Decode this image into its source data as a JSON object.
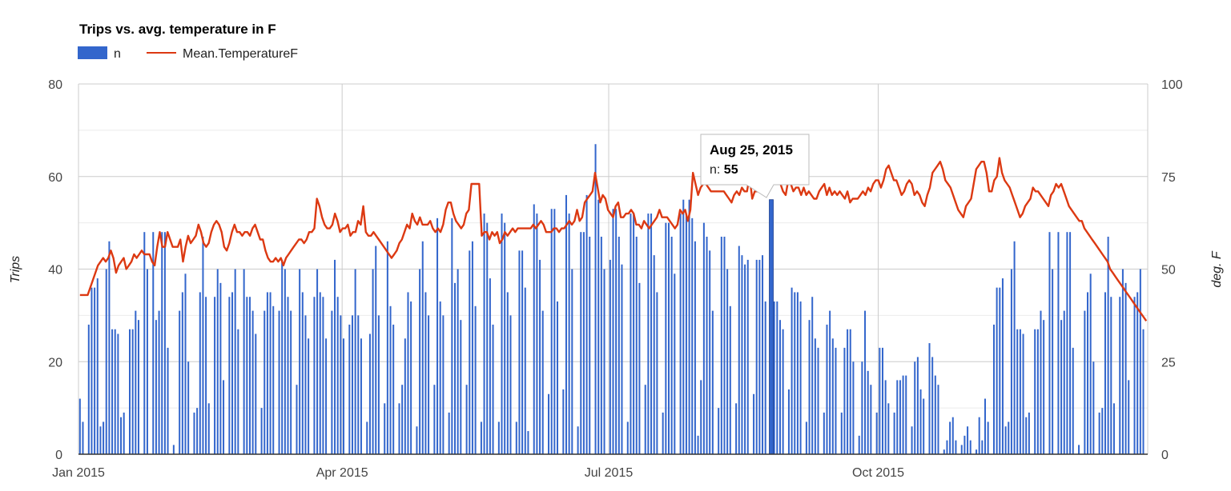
{
  "chart_data": {
    "type": "bar+line",
    "title": "Trips vs. avg. temperature in F",
    "ylabel": "Trips",
    "y2label": "deg. F",
    "ylim": [
      0,
      80
    ],
    "y2lim": [
      0,
      100
    ],
    "yticks": [
      "0",
      "20",
      "40",
      "60",
      "80"
    ],
    "y2ticks": [
      "0",
      "25",
      "50",
      "75",
      "100"
    ],
    "xticks": [
      "Jan 2015",
      "Apr 2015",
      "Jul 2015",
      "Oct 2015"
    ],
    "grid": true,
    "legend_position": "top-left",
    "x_start": "2015-01-01",
    "x_end": "2015-12-31",
    "series": [
      {
        "name": "n",
        "type": "bar",
        "axis": "left",
        "color": "#3366cc",
        "weekly_pattern": [
          12,
          7,
          0,
          28,
          36,
          36,
          38,
          6,
          7,
          40,
          46,
          27,
          27,
          26,
          8,
          9,
          0,
          27,
          27,
          31,
          29,
          0,
          48,
          40,
          0,
          48,
          29,
          31,
          48,
          48,
          23,
          0,
          2,
          0,
          31,
          35,
          39,
          20,
          0,
          9,
          10,
          35,
          47,
          34,
          11,
          0,
          34,
          40,
          37,
          16,
          0,
          34,
          35,
          40,
          27,
          0,
          40,
          34,
          34,
          31,
          26,
          0,
          10,
          31,
          35,
          35,
          32,
          0,
          31,
          42,
          40,
          34,
          31,
          0,
          15,
          40,
          35,
          30,
          25,
          0,
          34,
          40,
          35,
          34,
          25,
          0,
          31,
          42,
          34,
          30,
          25,
          0,
          28,
          30,
          40,
          30,
          25,
          0,
          7,
          26,
          40,
          45,
          30,
          0,
          11,
          46,
          32,
          28,
          0,
          11,
          15,
          25,
          35,
          33,
          0,
          6,
          40,
          46,
          35,
          30,
          0,
          15,
          51,
          33,
          30,
          0,
          9,
          51,
          37,
          40,
          29,
          0,
          15,
          44,
          46,
          32,
          0,
          7,
          52,
          50,
          38,
          28,
          0,
          7,
          52,
          50,
          35,
          30,
          0,
          7,
          44,
          44,
          36,
          5,
          0,
          54,
          52,
          42,
          31,
          0,
          13,
          53,
          53,
          33,
          0,
          14,
          56,
          52,
          40,
          0,
          6,
          48,
          48,
          56,
          47,
          0,
          67,
          55,
          47,
          40,
          0,
          42,
          53,
          53,
          47,
          41,
          0,
          7,
          52,
          52,
          47,
          37,
          0,
          15,
          52,
          52,
          43,
          35,
          0,
          9,
          50,
          50,
          47,
          39,
          0,
          52,
          55,
          52,
          55,
          51,
          46,
          4,
          16,
          50,
          47,
          44,
          31,
          0,
          10,
          47,
          47,
          40,
          32,
          0,
          11,
          45,
          43,
          41,
          42,
          0,
          13,
          42,
          42,
          43,
          33,
          0,
          10,
          33,
          33,
          29,
          27,
          0,
          14,
          36,
          35,
          35,
          33,
          0,
          7,
          29,
          34,
          25,
          23,
          0,
          9,
          28,
          31,
          25,
          23,
          0,
          9,
          23,
          27,
          27,
          20,
          0,
          4,
          20,
          31,
          18,
          15,
          0,
          9,
          23,
          23,
          16,
          11,
          0,
          9,
          16,
          16,
          17,
          17,
          0,
          6,
          20,
          21,
          14,
          12,
          0,
          24,
          21,
          17,
          15,
          0,
          1,
          3,
          7,
          8,
          3,
          0,
          2,
          4,
          6,
          3,
          0,
          1,
          8,
          3
        ]
      },
      {
        "name": "Mean.TemperatureF",
        "type": "line",
        "axis": "right",
        "color": "#dc3912",
        "values": [
          43,
          43,
          43,
          43,
          45,
          47,
          49,
          51,
          52,
          53,
          52,
          53,
          55,
          53,
          49,
          51,
          52,
          53,
          50,
          51,
          52,
          54,
          53,
          54,
          55,
          54,
          54,
          54,
          52,
          51,
          56,
          60,
          56,
          56,
          60,
          58,
          56,
          56,
          56,
          58,
          52,
          56,
          59,
          57,
          58,
          59,
          62,
          60,
          57,
          56,
          57,
          60,
          62,
          63,
          62,
          60,
          56,
          55,
          57,
          60,
          62,
          60,
          60,
          59,
          60,
          60,
          59,
          61,
          62,
          60,
          58,
          58,
          55,
          53,
          52,
          52,
          53,
          52,
          53,
          51,
          53,
          54,
          55,
          56,
          57,
          58,
          58,
          57,
          58,
          60,
          60,
          61,
          69,
          67,
          64,
          62,
          61,
          61,
          62,
          65,
          63,
          60,
          61,
          61,
          62,
          59,
          60,
          60,
          63,
          62,
          67,
          60,
          59,
          59,
          60,
          59,
          58,
          57,
          56,
          55,
          54,
          53,
          54,
          55,
          57,
          58,
          60,
          62,
          61,
          65,
          63,
          62,
          64,
          62,
          62,
          62,
          63,
          61,
          60,
          61,
          60,
          62,
          66,
          68,
          68,
          65,
          63,
          62,
          61,
          62,
          65,
          66,
          73,
          73,
          73,
          73,
          59,
          60,
          60,
          58,
          60,
          59,
          60,
          57,
          58,
          60,
          59,
          60,
          61,
          60,
          61,
          61,
          61,
          61,
          61,
          61,
          62,
          61,
          62,
          63,
          62,
          60,
          60,
          60,
          61,
          61,
          60,
          61,
          61,
          62,
          63,
          62,
          63,
          66,
          63,
          64,
          68,
          69,
          70,
          71,
          76,
          72,
          68,
          70,
          69,
          66,
          65,
          64,
          67,
          68,
          64,
          64,
          65,
          65,
          66,
          65,
          62,
          62,
          61,
          63,
          62,
          61,
          62,
          63,
          64,
          66,
          64,
          64,
          64,
          63,
          62,
          61,
          62,
          66,
          65,
          66,
          63,
          66,
          76,
          73,
          70,
          72,
          73,
          73,
          72,
          71,
          71,
          71,
          71,
          71,
          71,
          70,
          69,
          68,
          70,
          71,
          70,
          72,
          71,
          71,
          75,
          69,
          71,
          71,
          74,
          75,
          73,
          77,
          78,
          77,
          74,
          75,
          73,
          71,
          70,
          74,
          73,
          71,
          72,
          72,
          70,
          72,
          70,
          71,
          70,
          69,
          69,
          71,
          72,
          73,
          70,
          72,
          70,
          71,
          70,
          71,
          70,
          69,
          71,
          68,
          69,
          69,
          69,
          70,
          71,
          70,
          72,
          71,
          73,
          74,
          74,
          72,
          74,
          77,
          78,
          76,
          74,
          74,
          72,
          70,
          71,
          73,
          74,
          73,
          70,
          71,
          70,
          68,
          67,
          70,
          72,
          76,
          77,
          78,
          79,
          77,
          74,
          73,
          72,
          70,
          68,
          66,
          65,
          64,
          67,
          68,
          69,
          73,
          77,
          78,
          79,
          79,
          76,
          71,
          71,
          74,
          75,
          80,
          76,
          74,
          73,
          72,
          70,
          68,
          66,
          64,
          65,
          67,
          68,
          69,
          72,
          71,
          71,
          70,
          69,
          68,
          67,
          70,
          71,
          73,
          72,
          73,
          71,
          69,
          67,
          66,
          65,
          64,
          63,
          63,
          61,
          60,
          59,
          58,
          57,
          56,
          55,
          54,
          53,
          52,
          50,
          49,
          48,
          47,
          46,
          45,
          44,
          43,
          42,
          41,
          40,
          39,
          38,
          37,
          36
        ]
      }
    ],
    "tooltip": {
      "date": "Aug 25, 2015",
      "series": "n",
      "label": "n: ",
      "value": "55"
    }
  }
}
